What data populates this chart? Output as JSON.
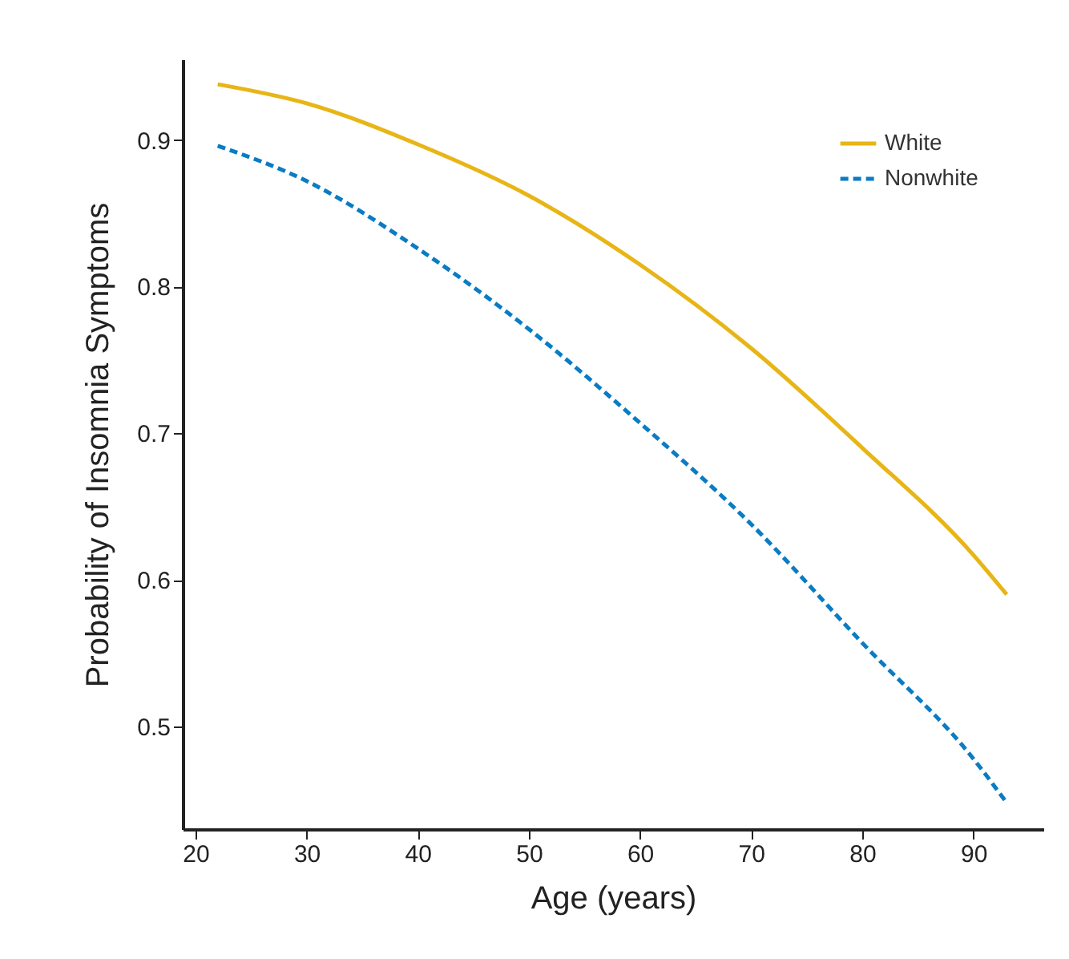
{
  "chart_data": {
    "type": "line",
    "xlabel": "Age (years)",
    "ylabel": "Probability of Insomnia Symptoms",
    "x": [
      22,
      30,
      40,
      50,
      60,
      70,
      80,
      90,
      93
    ],
    "series": [
      {
        "name": "White",
        "color": "#e8b517",
        "line_style": "solid",
        "values": [
          0.938,
          0.925,
          0.897,
          0.862,
          0.815,
          0.758,
          0.69,
          0.617,
          0.59
        ]
      },
      {
        "name": "Nonwhite",
        "color": "#0a7cc4",
        "line_style": "dashed",
        "values": [
          0.896,
          0.872,
          0.826,
          0.771,
          0.707,
          0.638,
          0.557,
          0.478,
          0.448
        ]
      }
    ],
    "xlim": [
      18.85,
      96.3
    ],
    "xticks": [
      20,
      30,
      40,
      50,
      60,
      70,
      80,
      90
    ],
    "ylim": [
      0.43,
      0.955
    ],
    "yticks": [
      0.5,
      0.6,
      0.7,
      0.8,
      0.9
    ],
    "grid": false,
    "legend": "top right",
    "marker": "none"
  }
}
